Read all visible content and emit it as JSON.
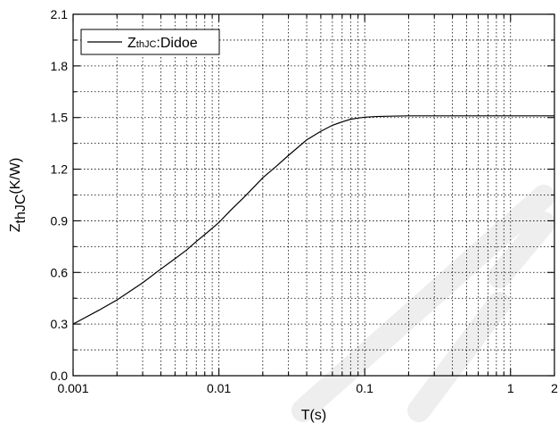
{
  "chart_data": {
    "type": "line",
    "title": "",
    "xlabel": "T(s)",
    "ylabel": {
      "main": "Z",
      "subscript": "thJC",
      "unit": "(K/W)"
    },
    "xscale": "log",
    "xlim": [
      0.001,
      2
    ],
    "ylim": [
      0.0,
      2.1
    ],
    "xticks": [
      {
        "value": 0.001,
        "label": "0.001"
      },
      {
        "value": 0.01,
        "label": "0.01"
      },
      {
        "value": 0.1,
        "label": "0.1"
      },
      {
        "value": 1,
        "label": "1"
      },
      {
        "value": 2,
        "label": "2"
      }
    ],
    "yticks": [
      {
        "value": 0.0,
        "label": "0.0"
      },
      {
        "value": 0.3,
        "label": "0.3"
      },
      {
        "value": 0.6,
        "label": "0.6"
      },
      {
        "value": 0.9,
        "label": "0.9"
      },
      {
        "value": 1.2,
        "label": "1.2"
      },
      {
        "value": 1.5,
        "label": "1.5"
      },
      {
        "value": 1.8,
        "label": "1.8"
      },
      {
        "value": 2.1,
        "label": "2.1"
      }
    ],
    "grid": true,
    "legend": {
      "placement": "top-left",
      "label_main": "Z",
      "label_sub": "thJC",
      "label_suffix": ":Didoe"
    },
    "series": [
      {
        "name": "ZthJC:Didoe",
        "color": "#000000",
        "x": [
          0.001,
          0.0015,
          0.002,
          0.003,
          0.004,
          0.005,
          0.006,
          0.007,
          0.008,
          0.01,
          0.012,
          0.015,
          0.02,
          0.025,
          0.03,
          0.04,
          0.05,
          0.06,
          0.07,
          0.08,
          0.09,
          0.1,
          0.12,
          0.15,
          0.2,
          0.3,
          0.5,
          1,
          2
        ],
        "y": [
          0.3,
          0.38,
          0.44,
          0.54,
          0.62,
          0.68,
          0.73,
          0.78,
          0.82,
          0.89,
          0.96,
          1.04,
          1.15,
          1.22,
          1.28,
          1.37,
          1.42,
          1.455,
          1.475,
          1.49,
          1.497,
          1.502,
          1.506,
          1.508,
          1.51,
          1.51,
          1.51,
          1.51,
          1.51
        ]
      }
    ]
  }
}
